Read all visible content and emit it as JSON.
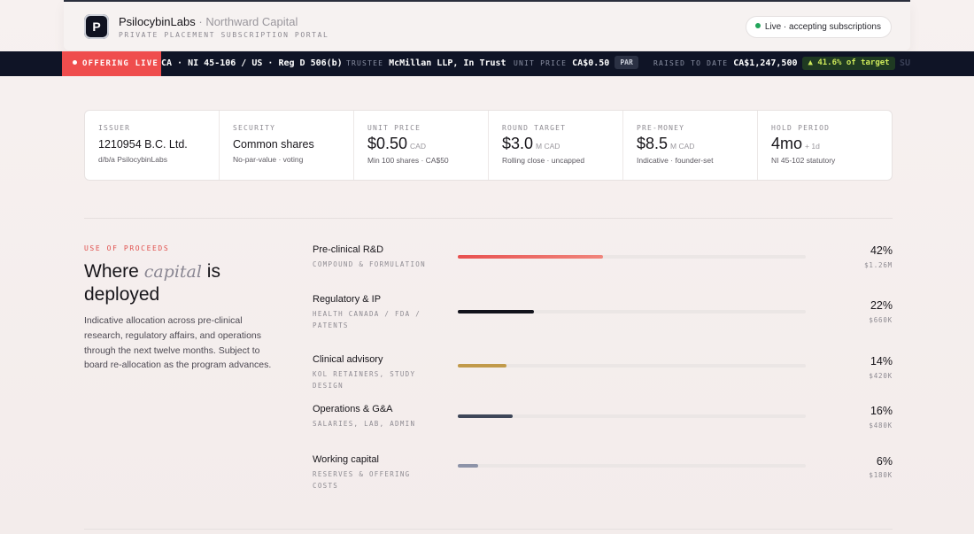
{
  "header": {
    "logo_letter": "P",
    "brand": "PsilocybinLabs",
    "separator": "·",
    "partner": "Northward Capital",
    "subtitle": "PRIVATE PLACEMENT SUBSCRIPTION PORTAL",
    "status": "Live · accepting subscriptions",
    "status_color": "#22a55a"
  },
  "ticker": {
    "badge": "OFFERING LIVE",
    "badge_color": "#ef4d4d",
    "jurisdiction": "CA · NI 45-106 / US · Reg D 506(b)",
    "trustee_label": "TRUSTEE",
    "trustee_value": "McMillan LLP, In Trust",
    "unit_price_label": "UNIT PRICE",
    "unit_price_value": "CA$0.50",
    "unit_price_tag": "PAR",
    "raised_label": "RAISED TO DATE",
    "raised_value": "CA$1,247,500",
    "raised_badge": "▲ 41.6% of target",
    "trailing": "SU"
  },
  "stats": [
    {
      "label": "ISSUER",
      "value": "1210954 B.C. Ltd.",
      "unit": "",
      "sub": "d/b/a PsilocybinLabs"
    },
    {
      "label": "SECURITY",
      "value": "Common shares",
      "unit": "",
      "sub": "No-par-value · voting"
    },
    {
      "label": "UNIT PRICE",
      "value": "$0.50",
      "unit": "CAD",
      "sub": "Min 100 shares · CA$50"
    },
    {
      "label": "ROUND TARGET",
      "value": "$3.0",
      "unit": "M CAD",
      "sub": "Rolling close · uncapped"
    },
    {
      "label": "PRE-MONEY",
      "value": "$8.5",
      "unit": "M CAD",
      "sub": "Indicative · founder-set"
    },
    {
      "label": "HOLD PERIOD",
      "value": "4mo",
      "unit": "+ 1d",
      "sub": "NI 45-102 statutory"
    }
  ],
  "proceeds": {
    "label": "USE OF PROCEEDS",
    "title_a": "Where",
    "title_em": "capital",
    "title_b": "is deployed",
    "description": "Indicative allocation across pre-clinical research, regulatory affairs, and operations through the next twelve months. Subject to board re-allocation as the program advances.",
    "items": [
      {
        "name": "Pre-clinical R&D",
        "sub": "COMPOUND & FORMULATION",
        "percent": "42%",
        "share": 0.42,
        "amount": "$1.26M",
        "color": "#e8504f",
        "color2": "#f0857c"
      },
      {
        "name": "Regulatory & IP",
        "sub": "HEALTH CANADA / FDA / PATENTS",
        "percent": "22%",
        "share": 0.22,
        "amount": "$660K",
        "color": "#12131c",
        "color2": "#12131c"
      },
      {
        "name": "Clinical advisory",
        "sub": "KOL RETAINERS, STUDY DESIGN",
        "percent": "14%",
        "share": 0.14,
        "amount": "$420K",
        "color": "#c19a4a",
        "color2": "#c19a4a"
      },
      {
        "name": "Operations & G&A",
        "sub": "SALARIES, LAB, ADMIN",
        "percent": "16%",
        "share": 0.16,
        "amount": "$480K",
        "color": "#3e4658",
        "color2": "#3e4658"
      },
      {
        "name": "Working capital",
        "sub": "RESERVES & OFFERING COSTS",
        "percent": "6%",
        "share": 0.06,
        "amount": "$180K",
        "color": "#8d93a8",
        "color2": "#8d93a8"
      }
    ]
  }
}
